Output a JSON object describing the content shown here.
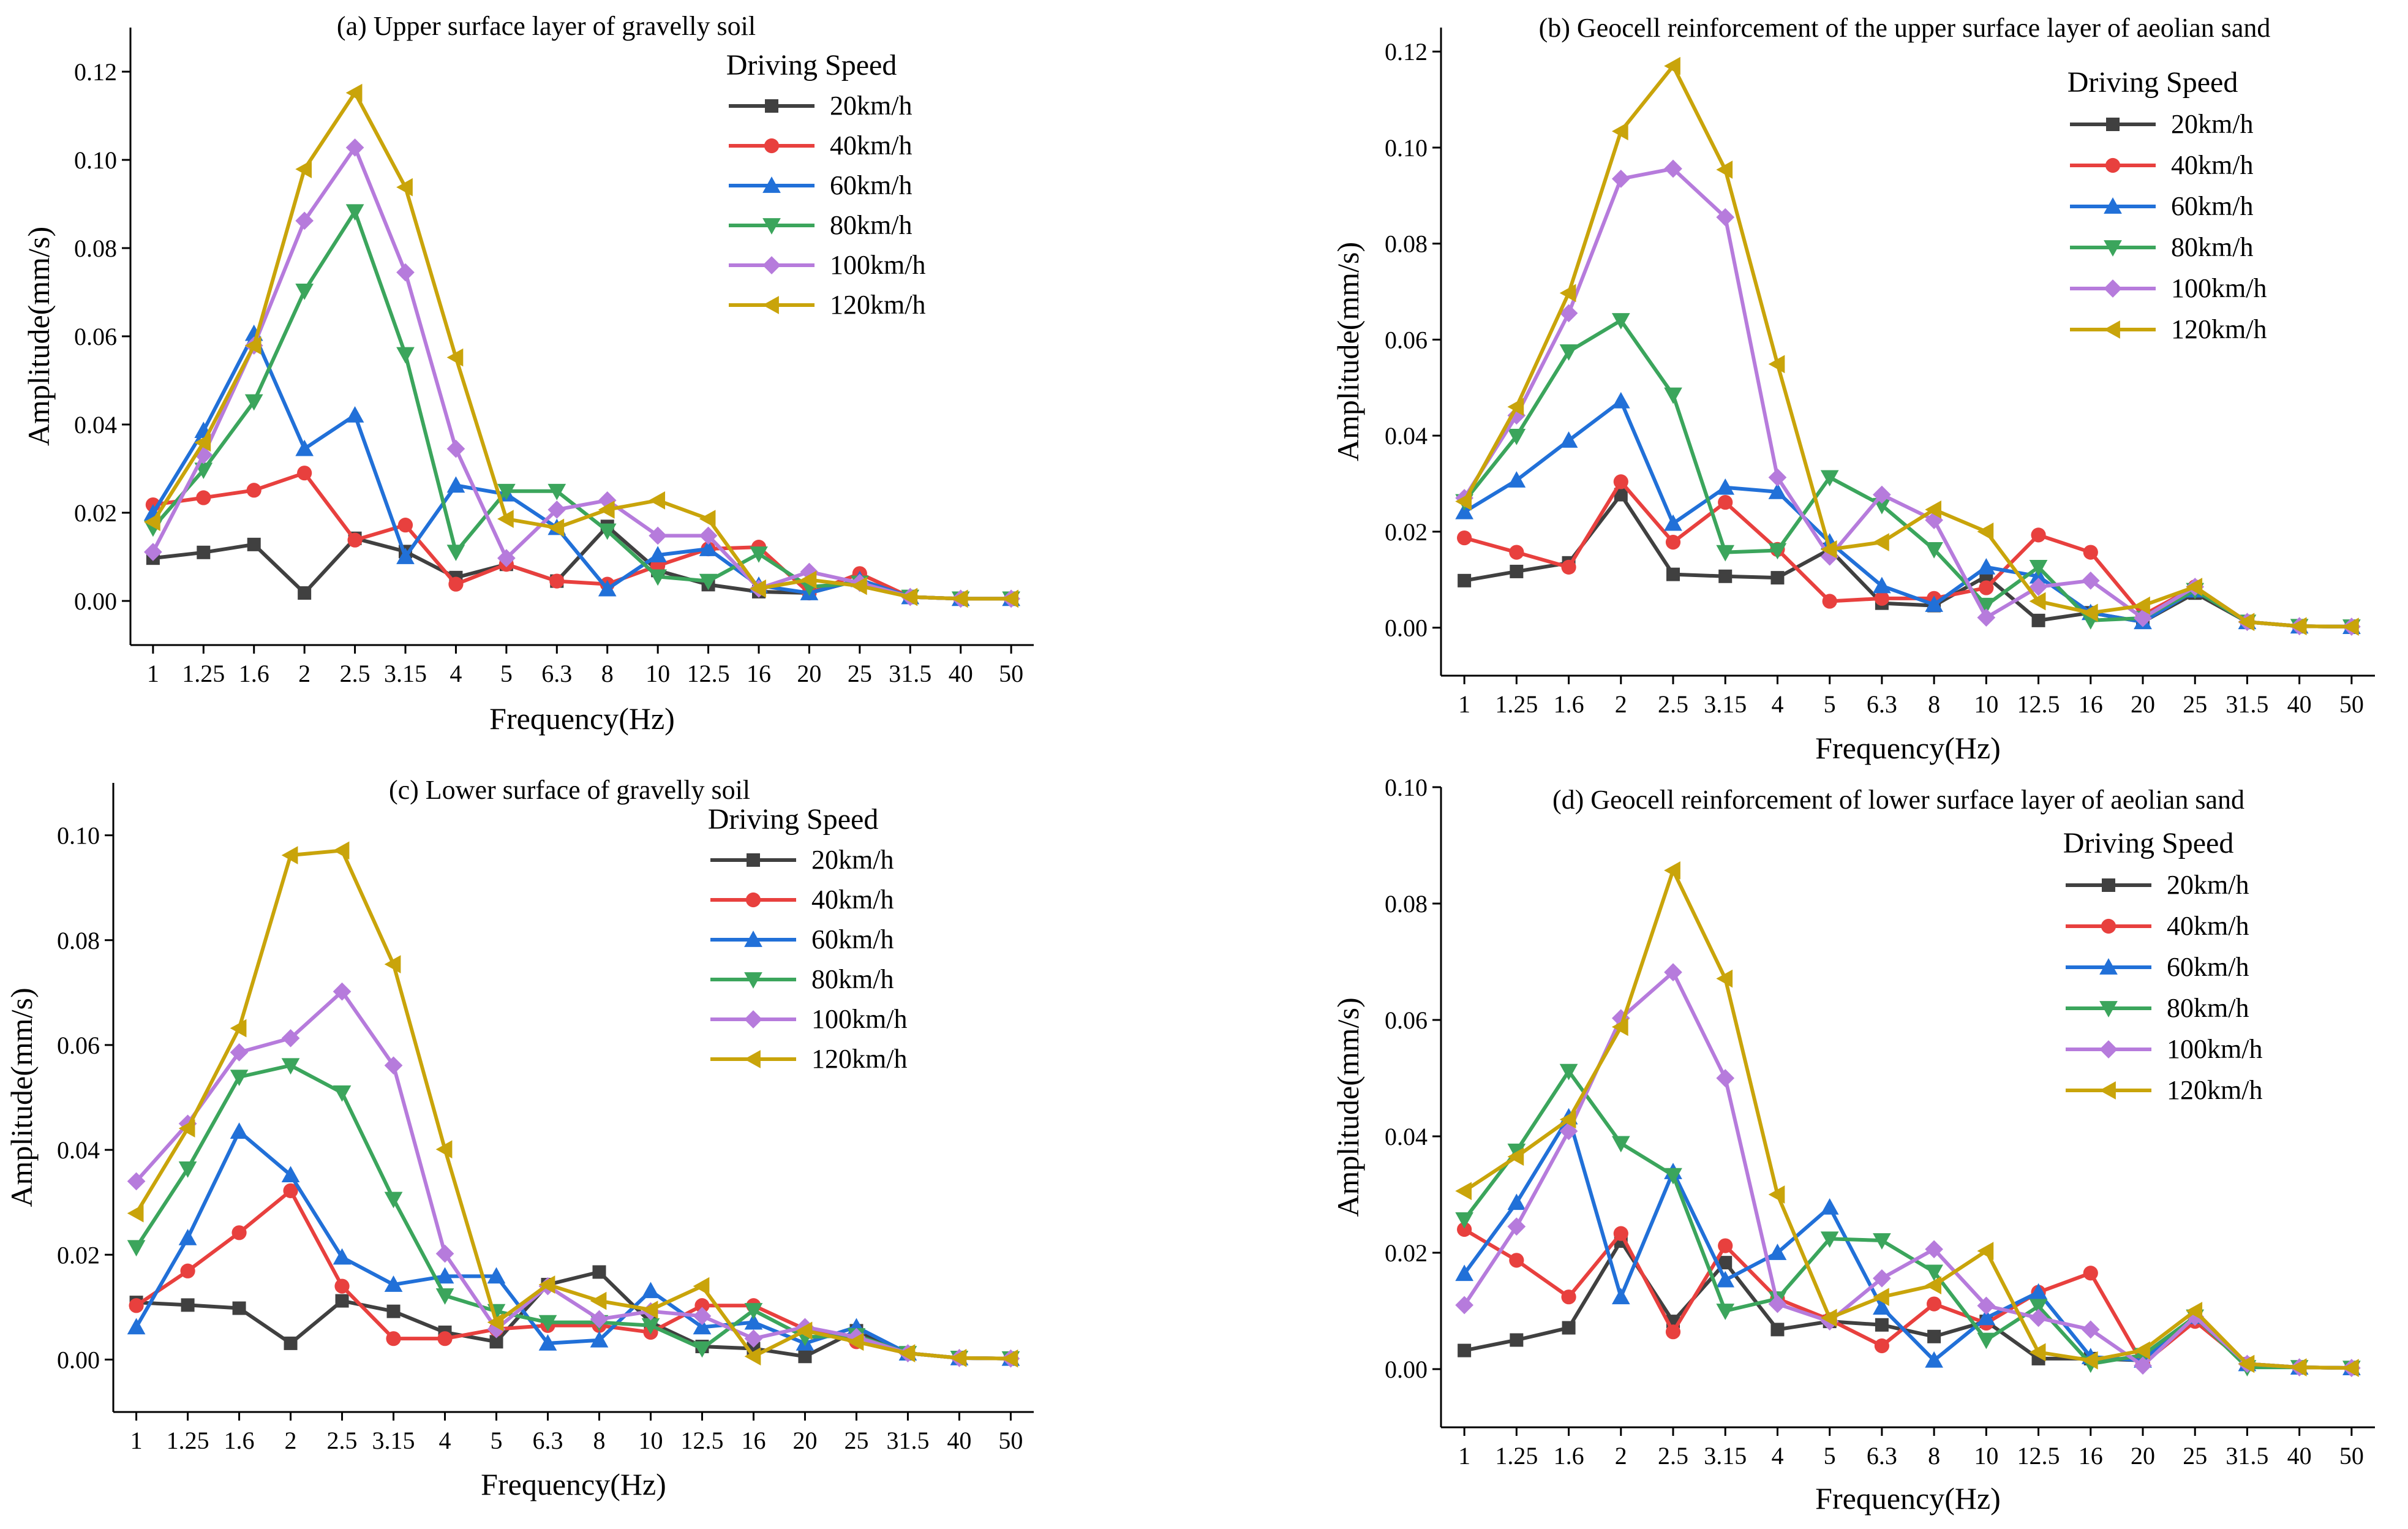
{
  "figure": {
    "panel_count": 4
  },
  "chart_data": [
    {
      "type": "line",
      "title": "(a) Upper surface layer of gravelly soil",
      "xlabel": "Frequency(Hz)",
      "ylabel": "Amplitude(mm/s)",
      "legend_title": "Driving Speed",
      "legend_placement": "top-right",
      "categories": [
        "1",
        "1.25",
        "1.6",
        "2",
        "2.5",
        "3.15",
        "4",
        "5",
        "6.3",
        "8",
        "10",
        "12.5",
        "16",
        "20",
        "25",
        "31.5",
        "40",
        "50"
      ],
      "ylim": [
        -0.01,
        0.13
      ],
      "yticks": [
        "0.00",
        "0.02",
        "0.04",
        "0.06",
        "0.08",
        "0.10",
        "0.12"
      ],
      "ytick_values": [
        0,
        0.02,
        0.04,
        0.06,
        0.08,
        0.1,
        0.12
      ],
      "series": [
        {
          "name": "20km/h",
          "color": "#404040",
          "marker": "square",
          "values": [
            0.0097,
            0.011,
            0.0128,
            0.0018,
            0.0142,
            0.0112,
            0.0053,
            0.0083,
            0.0045,
            0.0169,
            0.0069,
            0.0037,
            0.0021,
            0.0018,
            0.0048,
            0.0009,
            0.0005,
            0.0005
          ]
        },
        {
          "name": "40km/h",
          "color": "#e8403e",
          "marker": "circle",
          "values": [
            0.0218,
            0.0234,
            0.0251,
            0.029,
            0.0138,
            0.0172,
            0.0038,
            0.0083,
            0.0045,
            0.0038,
            0.008,
            0.0118,
            0.0122,
            0.0018,
            0.0062,
            0.0009,
            0.0005,
            0.0005
          ]
        },
        {
          "name": "60km/h",
          "color": "#2170d8",
          "marker": "triangle-up",
          "values": [
            0.0199,
            0.0386,
            0.0606,
            0.0345,
            0.0421,
            0.01,
            0.0262,
            0.0242,
            0.0166,
            0.0027,
            0.0104,
            0.0118,
            0.0035,
            0.0018,
            0.0048,
            0.0009,
            0.0005,
            0.0005
          ]
        },
        {
          "name": "80km/h",
          "color": "#3ba55c",
          "marker": "triangle-down",
          "values": [
            0.0166,
            0.0297,
            0.0452,
            0.0703,
            0.0883,
            0.0559,
            0.0111,
            0.0249,
            0.0249,
            0.0159,
            0.0055,
            0.0045,
            0.0107,
            0.0032,
            0.0041,
            0.0009,
            0.0005,
            0.0005
          ]
        },
        {
          "name": "100km/h",
          "color": "#b67bdc",
          "marker": "diamond",
          "values": [
            0.0111,
            0.0331,
            0.0579,
            0.0862,
            0.1028,
            0.0745,
            0.0345,
            0.0097,
            0.0207,
            0.0228,
            0.0148,
            0.0148,
            0.0028,
            0.0066,
            0.0041,
            0.0009,
            0.0005,
            0.0005
          ]
        },
        {
          "name": "120km/h",
          "color": "#c9a40a",
          "marker": "triangle-left",
          "values": [
            0.0179,
            0.0359,
            0.0579,
            0.0979,
            0.1152,
            0.0938,
            0.0552,
            0.0186,
            0.0166,
            0.0207,
            0.0228,
            0.0186,
            0.0028,
            0.0048,
            0.0034,
            0.0009,
            0.0005,
            0.0005
          ]
        }
      ]
    },
    {
      "type": "line",
      "title": "(b) Geocell reinforcement of the upper surface layer of aeolian sand",
      "xlabel": "Frequency(Hz)",
      "ylabel": "Amplitude(mm/s)",
      "legend_title": "Driving Speed",
      "legend_placement": "top-right",
      "categories": [
        "1",
        "1.25",
        "1.6",
        "2",
        "2.5",
        "3.15",
        "4",
        "5",
        "6.3",
        "8",
        "10",
        "12.5",
        "16",
        "20",
        "25",
        "31.5",
        "40",
        "50"
      ],
      "ylim": [
        -0.01,
        0.125
      ],
      "yticks": [
        "0.00",
        "0.02",
        "0.04",
        "0.06",
        "0.08",
        "0.10",
        "0.12"
      ],
      "ytick_values": [
        0,
        0.02,
        0.04,
        0.06,
        0.08,
        0.1,
        0.12
      ],
      "series": [
        {
          "name": "20km/h",
          "color": "#404040",
          "marker": "square",
          "values": [
            0.0098,
            0.0117,
            0.0135,
            0.0277,
            0.0111,
            0.0107,
            0.0104,
            0.0163,
            0.0051,
            0.0046,
            0.0107,
            0.0015,
            0.0031,
            0.0012,
            0.0072,
            0.0012,
            0.0003,
            0.0002
          ]
        },
        {
          "name": "40km/h",
          "color": "#e8403e",
          "marker": "circle",
          "values": [
            0.0187,
            0.0157,
            0.0126,
            0.0304,
            0.0178,
            0.0261,
            0.0163,
            0.0055,
            0.0061,
            0.0061,
            0.0083,
            0.0193,
            0.0157,
            0.0026,
            0.0085,
            0.0012,
            0.0003,
            0.0002
          ]
        },
        {
          "name": "60km/h",
          "color": "#2170d8",
          "marker": "triangle-up",
          "values": [
            0.0241,
            0.0307,
            0.039,
            0.0472,
            0.0217,
            0.0292,
            0.0283,
            0.0178,
            0.0087,
            0.0048,
            0.0126,
            0.0107,
            0.0031,
            0.0012,
            0.0078,
            0.0012,
            0.0003,
            0.0002
          ]
        },
        {
          "name": "80km/h",
          "color": "#3ba55c",
          "marker": "triangle-down",
          "values": [
            0.0263,
            0.0399,
            0.0575,
            0.064,
            0.0485,
            0.0157,
            0.0161,
            0.0313,
            0.0255,
            0.0163,
            0.0047,
            0.0126,
            0.0015,
            0.002,
            0.0078,
            0.0012,
            0.0003,
            0.0002
          ]
        },
        {
          "name": "100km/h",
          "color": "#b67bdc",
          "marker": "diamond",
          "values": [
            0.027,
            0.0442,
            0.0655,
            0.0935,
            0.0956,
            0.0855,
            0.0313,
            0.0148,
            0.0277,
            0.0224,
            0.0021,
            0.0085,
            0.0098,
            0.002,
            0.0085,
            0.0012,
            0.0003,
            0.0002
          ]
        },
        {
          "name": "120km/h",
          "color": "#c9a40a",
          "marker": "triangle-left",
          "values": [
            0.0263,
            0.046,
            0.0697,
            0.1034,
            0.117,
            0.0954,
            0.0549,
            0.0163,
            0.0178,
            0.0246,
            0.02,
            0.0055,
            0.0031,
            0.0046,
            0.0085,
            0.0012,
            0.0003,
            0.0002
          ]
        }
      ]
    },
    {
      "type": "line",
      "title": "(c) Lower surface of gravelly soil",
      "xlabel": "Frequency(Hz)",
      "ylabel": "Amplitude(mm/s)",
      "legend_title": "Driving Speed",
      "legend_placement": "top-right",
      "categories": [
        "1",
        "1.25",
        "1.6",
        "2",
        "2.5",
        "3.15",
        "4",
        "5",
        "6.3",
        "8",
        "10",
        "12.5",
        "16",
        "20",
        "25",
        "31.5",
        "40",
        "50"
      ],
      "ylim": [
        -0.01,
        0.11
      ],
      "yticks": [
        "0.00",
        "0.02",
        "0.04",
        "0.06",
        "0.08",
        "0.10"
      ],
      "ytick_values": [
        0,
        0.02,
        0.04,
        0.06,
        0.08,
        0.1
      ],
      "series": [
        {
          "name": "20km/h",
          "color": "#404040",
          "marker": "square",
          "values": [
            0.0109,
            0.0104,
            0.0098,
            0.0031,
            0.0112,
            0.0092,
            0.0052,
            0.0034,
            0.0143,
            0.0167,
            0.0071,
            0.0025,
            0.0021,
            0.0006,
            0.0055,
            0.0012,
            0.0003,
            0.0002
          ]
        },
        {
          "name": "40km/h",
          "color": "#e8403e",
          "marker": "circle",
          "values": [
            0.0103,
            0.0169,
            0.0242,
            0.0322,
            0.014,
            0.004,
            0.004,
            0.0058,
            0.0065,
            0.0065,
            0.0052,
            0.0103,
            0.0103,
            0.0058,
            0.0034,
            0.0012,
            0.0003,
            0.0002
          ]
        },
        {
          "name": "60km/h",
          "color": "#2170d8",
          "marker": "triangle-up",
          "values": [
            0.0062,
            0.0232,
            0.0435,
            0.0352,
            0.0195,
            0.0143,
            0.0159,
            0.0159,
            0.0031,
            0.0037,
            0.0131,
            0.0062,
            0.0071,
            0.0031,
            0.0062,
            0.0012,
            0.0003,
            0.0002
          ]
        },
        {
          "name": "80km/h",
          "color": "#3ba55c",
          "marker": "triangle-down",
          "values": [
            0.0214,
            0.0364,
            0.0539,
            0.0561,
            0.0509,
            0.0306,
            0.0122,
            0.0092,
            0.0071,
            0.0071,
            0.0065,
            0.0021,
            0.0094,
            0.0043,
            0.0046,
            0.0012,
            0.0003,
            0.0002
          ]
        },
        {
          "name": "100km/h",
          "color": "#b67bdc",
          "marker": "diamond",
          "values": [
            0.034,
            0.045,
            0.0586,
            0.0613,
            0.0702,
            0.0561,
            0.0202,
            0.0058,
            0.014,
            0.0077,
            0.0092,
            0.0083,
            0.004,
            0.0062,
            0.0043,
            0.0012,
            0.0003,
            0.0002
          ]
        },
        {
          "name": "120km/h",
          "color": "#c9a40a",
          "marker": "triangle-left",
          "values": [
            0.0279,
            0.0441,
            0.0632,
            0.0962,
            0.0971,
            0.0754,
            0.0401,
            0.0071,
            0.0143,
            0.0112,
            0.0095,
            0.014,
            0.0006,
            0.0055,
            0.0034,
            0.0012,
            0.0003,
            0.0002
          ]
        }
      ]
    },
    {
      "type": "line",
      "title": "(d) Geocell reinforcement of lower surface layer of aeolian sand",
      "xlabel": "Frequency(Hz)",
      "ylabel": "Amplitude(mm/s)",
      "legend_title": "Driving Speed",
      "legend_placement": "top-right",
      "categories": [
        "1",
        "1.25",
        "1.6",
        "2",
        "2.5",
        "3.15",
        "4",
        "5",
        "6.3",
        "8",
        "10",
        "12.5",
        "16",
        "20",
        "25",
        "31.5",
        "40",
        "50"
      ],
      "ylim": [
        -0.01,
        0.1
      ],
      "yticks": [
        "0.00",
        "0.02",
        "0.04",
        "0.06",
        "0.08",
        "0.10"
      ],
      "ytick_values": [
        0,
        0.02,
        0.04,
        0.06,
        0.08,
        0.1
      ],
      "series": [
        {
          "name": "20km/h",
          "color": "#404040",
          "marker": "square",
          "values": [
            0.0032,
            0.005,
            0.0071,
            0.022,
            0.0082,
            0.0183,
            0.0068,
            0.0082,
            0.0076,
            0.0056,
            0.0082,
            0.0018,
            0.0018,
            0.0015,
            0.009,
            0.0009,
            0.0003,
            0.0002
          ]
        },
        {
          "name": "40km/h",
          "color": "#e8403e",
          "marker": "circle",
          "values": [
            0.024,
            0.0187,
            0.0124,
            0.0233,
            0.0064,
            0.0212,
            0.0121,
            0.0085,
            0.004,
            0.0112,
            0.0079,
            0.0132,
            0.0165,
            0.0009,
            0.0082,
            0.0009,
            0.0003,
            0.0002
          ]
        },
        {
          "name": "60km/h",
          "color": "#2170d8",
          "marker": "triangle-up",
          "values": [
            0.0164,
            0.0286,
            0.0433,
            0.0124,
            0.0339,
            0.0153,
            0.02,
            0.0278,
            0.0106,
            0.0015,
            0.0088,
            0.0132,
            0.0021,
            0.0015,
            0.009,
            0.0009,
            0.0003,
            0.0002
          ]
        },
        {
          "name": "80km/h",
          "color": "#3ba55c",
          "marker": "triangle-down",
          "values": [
            0.0257,
            0.0375,
            0.0512,
            0.0388,
            0.0333,
            0.01,
            0.0121,
            0.0224,
            0.0221,
            0.0167,
            0.005,
            0.0108,
            0.0009,
            0.0024,
            0.009,
            0.0003,
            0.0003,
            0.0002
          ]
        },
        {
          "name": "100km/h",
          "color": "#b67bdc",
          "marker": "diamond",
          "values": [
            0.011,
            0.0245,
            0.0409,
            0.0603,
            0.0682,
            0.05,
            0.0112,
            0.0082,
            0.0156,
            0.0206,
            0.0109,
            0.0088,
            0.0068,
            0.0006,
            0.009,
            0.0009,
            0.0003,
            0.0002
          ]
        },
        {
          "name": "120km/h",
          "color": "#c9a40a",
          "marker": "triangle-left",
          "values": [
            0.0306,
            0.0365,
            0.0429,
            0.0588,
            0.0857,
            0.0671,
            0.03,
            0.0088,
            0.0124,
            0.0144,
            0.0203,
            0.0029,
            0.0015,
            0.0032,
            0.01,
            0.0009,
            0.0003,
            0.0002
          ]
        }
      ]
    }
  ]
}
